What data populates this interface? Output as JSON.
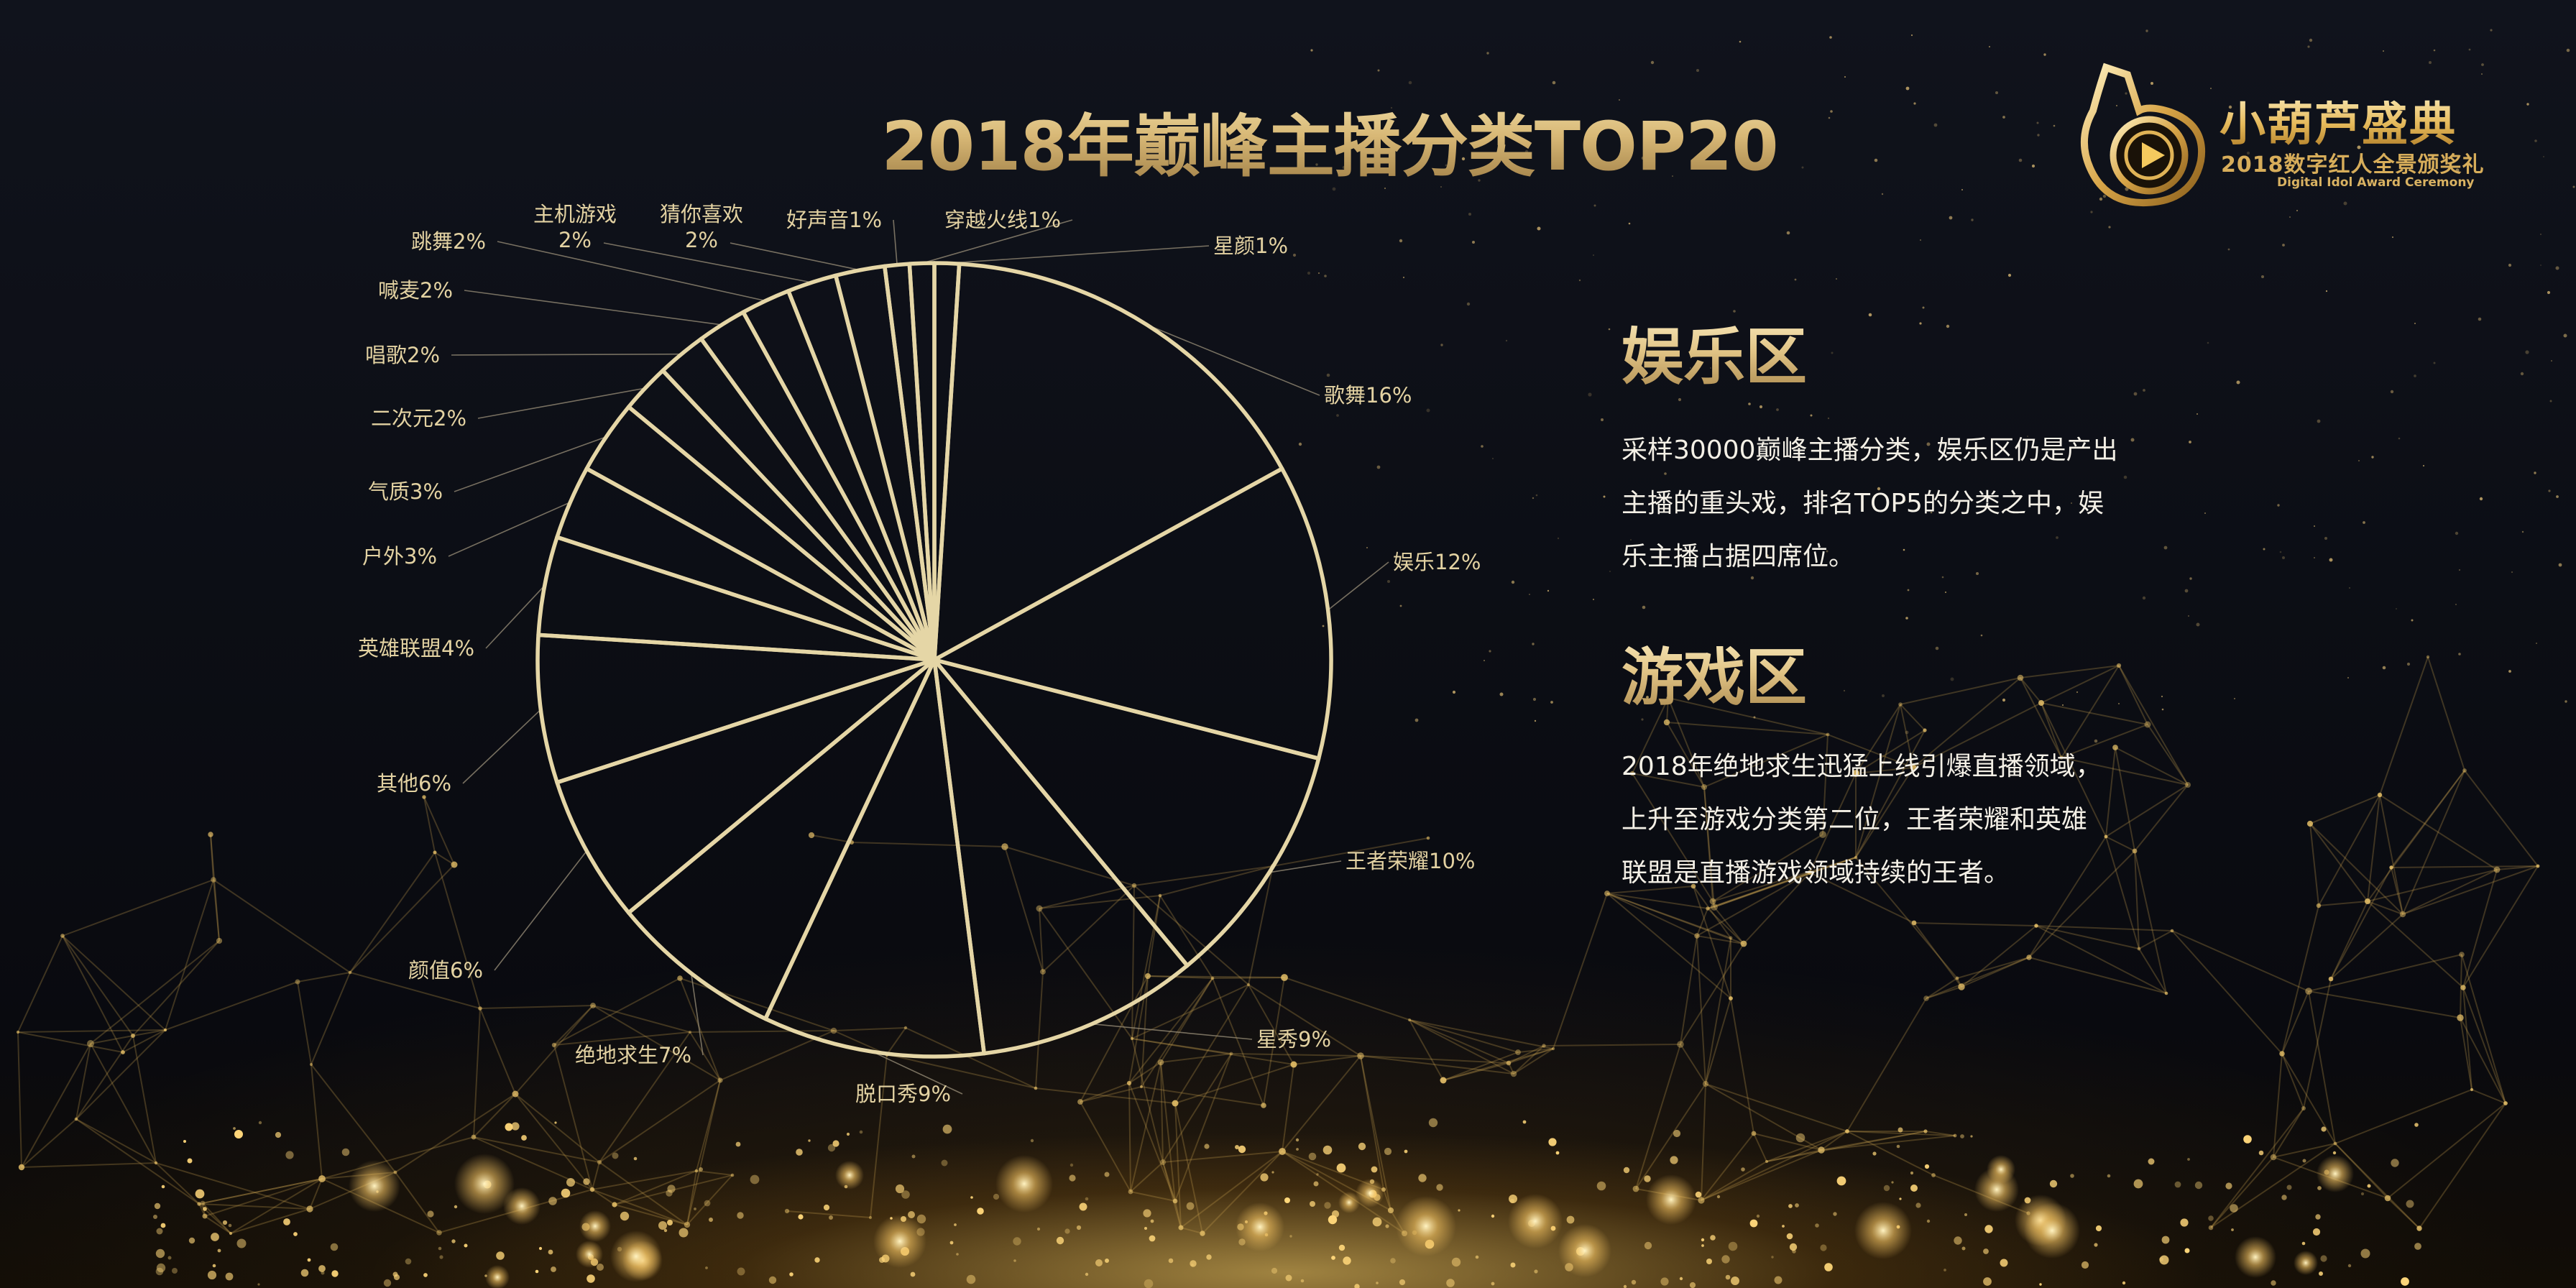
{
  "title": "2018年巅峰主播分类TOP20",
  "logo": {
    "name": "小葫芦盛典",
    "subtitle": "2018数字红人全景颁奖礼",
    "english": "Digital Idol Award Ceremony"
  },
  "sections": [
    {
      "title": "娱乐区",
      "lines": [
        "采样30000巅峰主播分类，娱乐区仍是产出",
        "主播的重头戏，排名TOP5的分类之中，娱",
        "乐主播占据四席位。"
      ]
    },
    {
      "title": "游戏区",
      "lines": [
        "2018年绝地求生迅猛上线引爆直播领域，",
        "上升至游戏分类第二位，王者荣耀和英雄",
        "联盟是直播游戏领域持续的王者。"
      ]
    }
  ],
  "colors": {
    "gold": "#d8c48f",
    "pie_stroke": "#e5d6a6",
    "label": "#e3d2a2",
    "body_text": "#f4f0e6"
  },
  "chart_data": {
    "type": "pie",
    "title": "2018年巅峰主播分类TOP20",
    "unit": "%",
    "start": "12 o'clock",
    "direction": "clockwise",
    "slices": [
      {
        "label": "星颜1%",
        "name": "星颜",
        "value": 1
      },
      {
        "label": "歌舞16%",
        "name": "歌舞",
        "value": 16
      },
      {
        "label": "娱乐12%",
        "name": "娱乐",
        "value": 12
      },
      {
        "label": "王者荣耀10%",
        "name": "王者荣耀",
        "value": 10
      },
      {
        "label": "星秀9%",
        "name": "星秀",
        "value": 9
      },
      {
        "label": "脱口秀9%",
        "name": "脱口秀",
        "value": 9
      },
      {
        "label": "绝地求生7%",
        "name": "绝地求生",
        "value": 7
      },
      {
        "label": "颜值6%",
        "name": "颜值",
        "value": 6
      },
      {
        "label": "其他6%",
        "name": "其他",
        "value": 6
      },
      {
        "label": "英雄联盟4%",
        "name": "英雄联盟",
        "value": 4
      },
      {
        "label": "户外3%",
        "name": "户外",
        "value": 3
      },
      {
        "label": "气质3%",
        "name": "气质",
        "value": 3
      },
      {
        "label": "二次元2%",
        "name": "二次元",
        "value": 2
      },
      {
        "label": "唱歌2%",
        "name": "唱歌",
        "value": 2
      },
      {
        "label": "喊麦2%",
        "name": "喊麦",
        "value": 2
      },
      {
        "label": "跳舞2%",
        "name": "跳舞",
        "value": 2
      },
      {
        "label": [
          "主机游戏",
          "2%"
        ],
        "name": "主机游戏",
        "value": 2
      },
      {
        "label": [
          "猜你喜欢",
          "2%"
        ],
        "name": "猜你喜欢",
        "value": 2
      },
      {
        "label": "好声音1%",
        "name": "好声音",
        "value": 1
      },
      {
        "label": "穿越火线1%",
        "name": "穿越火线",
        "value": 1
      }
    ]
  }
}
